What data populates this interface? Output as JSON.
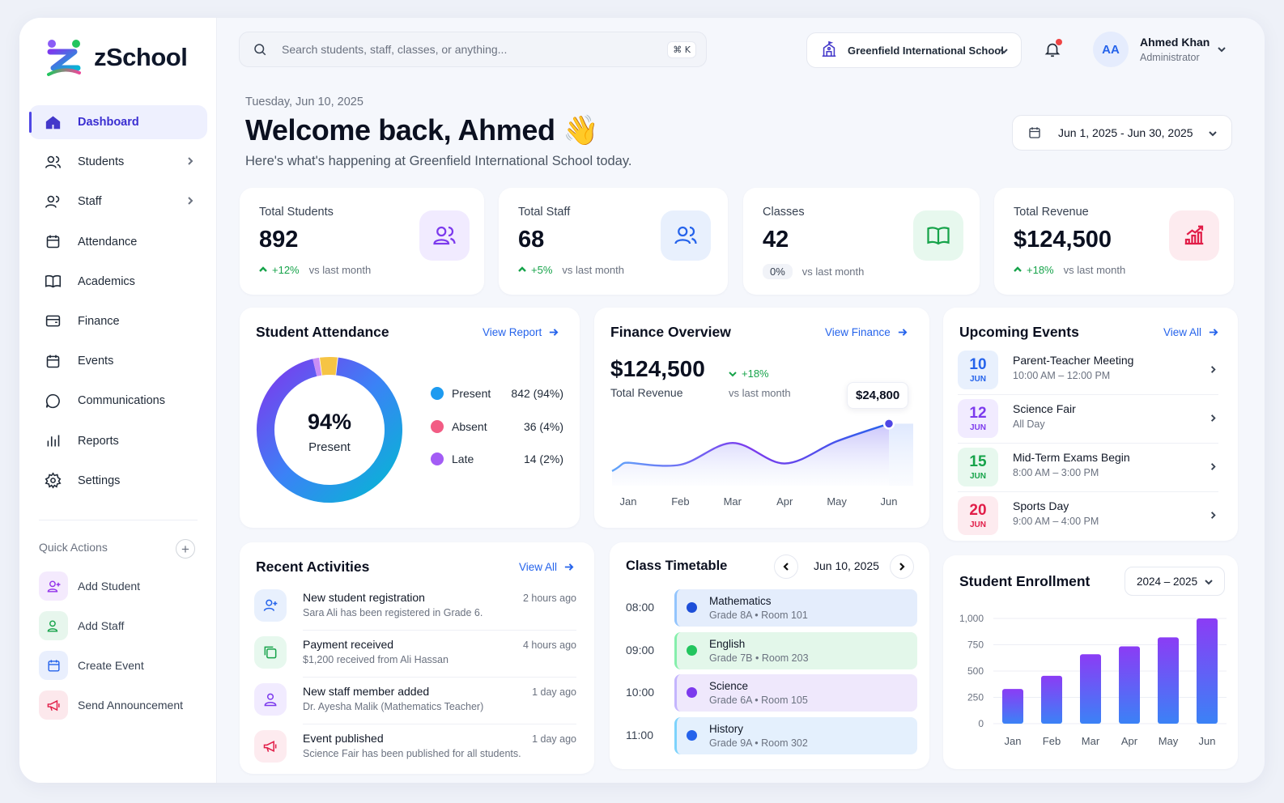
{
  "app": {
    "name": "zSchool"
  },
  "sidebar": {
    "items": [
      {
        "label": "Dashboard",
        "icon": "home-icon",
        "active": true
      },
      {
        "label": "Students",
        "icon": "users-icon",
        "has_children": true
      },
      {
        "label": "Staff",
        "icon": "user-group-icon",
        "has_children": true
      },
      {
        "label": "Attendance",
        "icon": "calendar-icon"
      },
      {
        "label": "Academics",
        "icon": "book-icon"
      },
      {
        "label": "Finance",
        "icon": "wallet-icon"
      },
      {
        "label": "Events",
        "icon": "calendar-event-icon"
      },
      {
        "label": "Communications",
        "icon": "chat-icon"
      },
      {
        "label": "Reports",
        "icon": "bar-chart-icon"
      },
      {
        "label": "Settings",
        "icon": "gear-icon"
      }
    ],
    "quick_actions": {
      "title": "Quick Actions",
      "add_symbol": "+",
      "items": [
        {
          "label": "Add Student",
          "icon": "add-user-icon",
          "color": "#9333ea"
        },
        {
          "label": "Add Staff",
          "icon": "add-staff-icon",
          "color": "#16a34a"
        },
        {
          "label": "Create Event",
          "icon": "calendar-icon",
          "color": "#2563eb"
        },
        {
          "label": "Send Announcement",
          "icon": "megaphone-icon",
          "color": "#e11d48"
        }
      ]
    }
  },
  "topbar": {
    "search_placeholder": "Search students, staff, classes, or anything...",
    "search_shortcut": "⌘ K",
    "school": "Greenfield International School",
    "user": {
      "initials": "AA",
      "name": "Ahmed Khan",
      "role": "Administrator"
    }
  },
  "header": {
    "date": "Tuesday, Jun 10, 2025",
    "title": "Welcome back, Ahmed 👋",
    "subtitle": "Here's what's happening at Greenfield International School today.",
    "date_range": "Jun 1, 2025 - Jun 30, 2025"
  },
  "stats": [
    {
      "title": "Total Students",
      "value": "892",
      "change": "+12%",
      "trend": "up",
      "vs": "vs last month",
      "icon": "students-icon",
      "color": "#7c3aed",
      "bg": "#f1ebff"
    },
    {
      "title": "Total Staff",
      "value": "68",
      "change": "+5%",
      "trend": "up",
      "vs": "vs last month",
      "icon": "staff-icon",
      "color": "#2563eb",
      "bg": "#e8f0fd"
    },
    {
      "title": "Classes",
      "value": "42",
      "change": "0%",
      "trend": "neutral",
      "vs": "vs last month",
      "icon": "book-open-icon",
      "color": "#16a34a",
      "bg": "#e7f8ee"
    },
    {
      "title": "Total Revenue",
      "value": "$124,500",
      "change": "+18%",
      "trend": "up",
      "vs": "vs last month",
      "icon": "growth-chart-icon",
      "color": "#e11d48",
      "bg": "#fdebef"
    }
  ],
  "attendance": {
    "title": "Student Attendance",
    "link": "View Report",
    "center_value": "94%",
    "center_label": "Present",
    "legend": [
      {
        "label": "Present",
        "value": "842 (94%)",
        "count": 842,
        "color": "#1d9bf0"
      },
      {
        "label": "Absent",
        "value": "36 (4%)",
        "count": 36,
        "color": "#f25c84"
      },
      {
        "label": "Late",
        "value": "14 (2%)",
        "count": 14,
        "color": "#a35cf5"
      }
    ]
  },
  "finance": {
    "title": "Finance Overview",
    "link": "View Finance",
    "total": "$124,500",
    "total_label": "Total Revenue",
    "change": "+18%",
    "vs": "vs last month",
    "tooltip": "$24,800"
  },
  "events": {
    "title": "Upcoming Events",
    "link": "View All",
    "items": [
      {
        "day": "10",
        "month": "JUN",
        "title": "Parent-Teacher Meeting",
        "time": "10:00 AM – 12:00 PM",
        "color": "#2563eb",
        "bg": "#e8f0fd"
      },
      {
        "day": "12",
        "month": "JUN",
        "title": "Science Fair",
        "time": "All Day",
        "color": "#7c3aed",
        "bg": "#f1ebff"
      },
      {
        "day": "15",
        "month": "JUN",
        "title": "Mid-Term Exams Begin",
        "time": "8:00 AM – 3:00 PM",
        "color": "#16a34a",
        "bg": "#e7f8ee"
      },
      {
        "day": "20",
        "month": "JUN",
        "title": "Sports Day",
        "time": "9:00 AM – 4:00 PM",
        "color": "#e11d48",
        "bg": "#fdebef"
      }
    ]
  },
  "activities": {
    "title": "Recent Activities",
    "link": "View All",
    "items": [
      {
        "title": "New student registration",
        "desc": "Sara Ali has been registered in Grade 6.",
        "time": "2 hours ago",
        "icon": "user-plus-icon",
        "color": "#2563eb",
        "bg": "#e8f0fd"
      },
      {
        "title": "Payment received",
        "desc": "$1,200 received from Ali Hassan",
        "time": "4 hours ago",
        "icon": "payment-icon",
        "color": "#16a34a",
        "bg": "#e7f8ee"
      },
      {
        "title": "New staff member added",
        "desc": "Dr. Ayesha Malik (Mathematics Teacher)",
        "time": "1 day ago",
        "icon": "staff-add-icon",
        "color": "#7c3aed",
        "bg": "#f1ebff"
      },
      {
        "title": "Event published",
        "desc": "Science Fair has been published for all students.",
        "time": "1 day ago",
        "icon": "megaphone-icon",
        "color": "#e11d48",
        "bg": "#fdebef"
      }
    ]
  },
  "timetable": {
    "title": "Class Timetable",
    "date": "Jun 10, 2025",
    "slots": [
      {
        "time": "08:00",
        "subject": "Mathematics",
        "grade": "Grade 8A",
        "room": "Room 101",
        "color": "#1d4ed8",
        "bg": "#e4edfc",
        "border": "#93c5fd"
      },
      {
        "time": "09:00",
        "subject": "English",
        "grade": "Grade 7B",
        "room": "Room 203",
        "color": "#22c55e",
        "bg": "#e3f7ea",
        "border": "#86efac"
      },
      {
        "time": "10:00",
        "subject": "Science",
        "grade": "Grade 6A",
        "room": "Room 105",
        "color": "#7c3aed",
        "bg": "#efe8fc",
        "border": "#c4b5fd"
      },
      {
        "time": "11:00",
        "subject": "History",
        "grade": "Grade 9A",
        "room": "Room 302",
        "color": "#2563eb",
        "bg": "#e4f0fd",
        "border": "#7dd3fc"
      }
    ]
  },
  "enrollment": {
    "title": "Student Enrollment",
    "year": "2024 – 2025"
  },
  "chart_data": [
    {
      "type": "area",
      "categories": [
        "Jan",
        "Feb",
        "Mar",
        "Apr",
        "May",
        "Jun"
      ],
      "values": [
        15500,
        15000,
        20200,
        15300,
        20600,
        24800
      ],
      "ylim": [
        10000,
        27000
      ],
      "highlight": {
        "category": "Jun",
        "label": "$24,800"
      }
    },
    {
      "type": "bar",
      "categories": [
        "Jan",
        "Feb",
        "Mar",
        "Apr",
        "May",
        "Jun"
      ],
      "values": [
        330,
        455,
        660,
        735,
        820,
        1000
      ],
      "yticks": [
        "0",
        "250",
        "500",
        "750",
        "1,000"
      ],
      "ylim": [
        0,
        1000
      ],
      "grid": true
    }
  ]
}
